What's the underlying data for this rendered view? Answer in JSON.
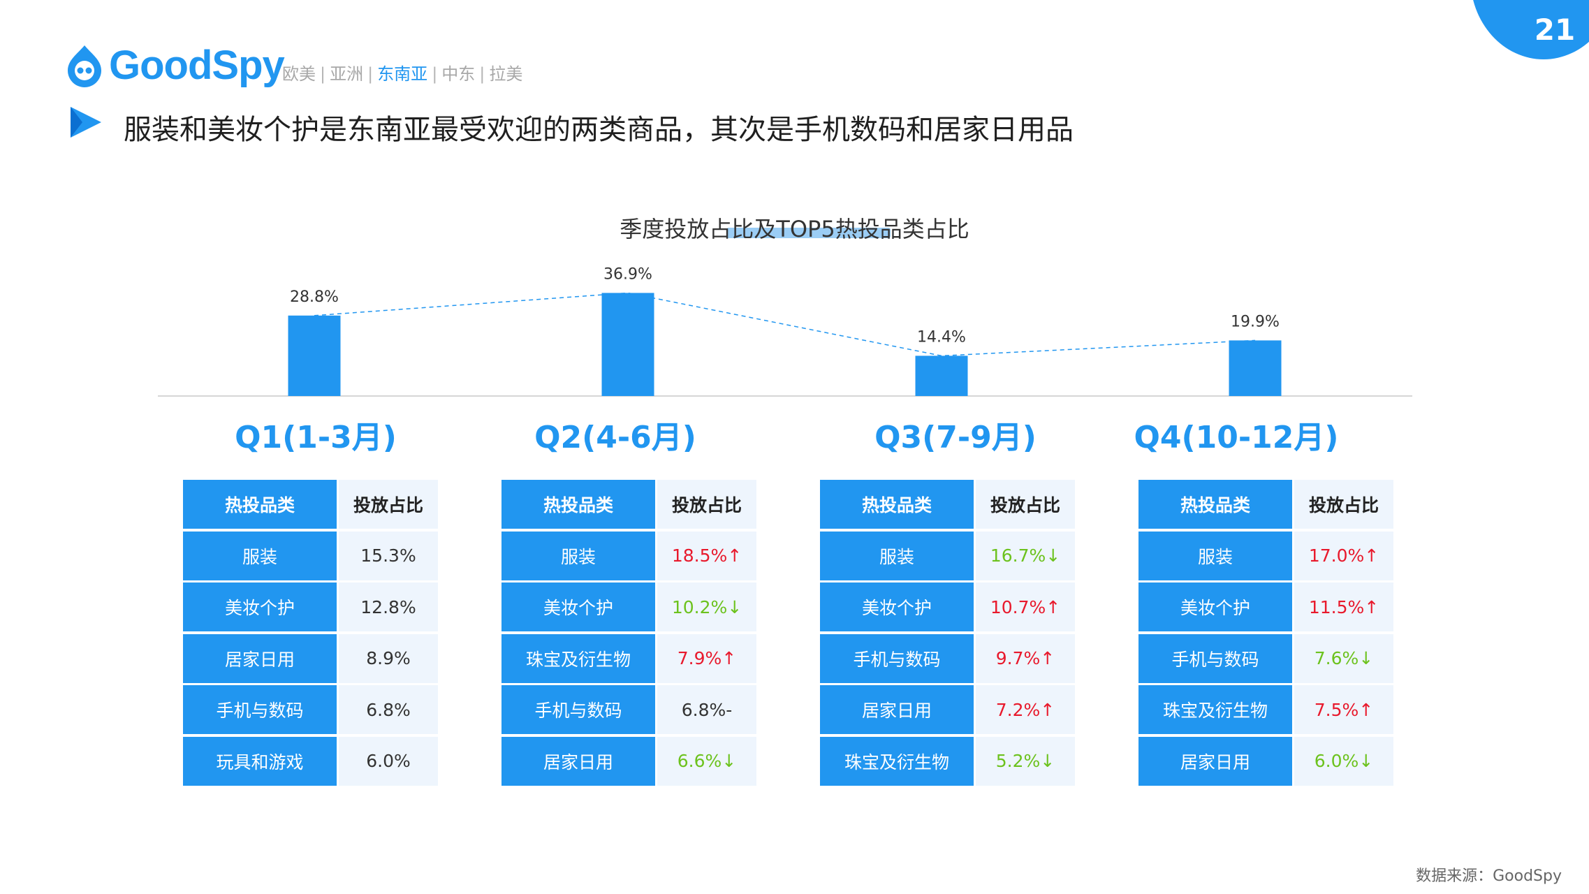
{
  "page_number": "21",
  "logo": {
    "text": "GoodSpy"
  },
  "regions": [
    {
      "label": "欧美",
      "active": false
    },
    {
      "label": "亚洲",
      "active": false
    },
    {
      "label": "东南亚",
      "active": true
    },
    {
      "label": "中东",
      "active": false
    },
    {
      "label": "拉美",
      "active": false
    }
  ],
  "headline": "服装和美妆个护是东南亚最受欢迎的两类商品，其次是手机数码和居家日用品",
  "chart_data": {
    "type": "bar",
    "title": "季度投放占比及TOP5热投品类占比",
    "categories": [
      "Q1(1-3月)",
      "Q2(4-6月)",
      "Q3(7-9月)",
      "Q4(10-12月)"
    ],
    "values": [
      28.8,
      36.9,
      14.4,
      19.9
    ],
    "value_labels": [
      "28.8%",
      "36.9%",
      "14.4%",
      "19.9%"
    ],
    "trend_line": "dashed",
    "grid": false,
    "legend": "none",
    "bar_color": "#2196f0"
  },
  "tables": [
    {
      "quarter": "Q1(1-3月)",
      "headers": [
        "热投品类",
        "投放占比"
      ],
      "rows": [
        {
          "category": "服装",
          "share": "15.3%",
          "trend": "flat"
        },
        {
          "category": "美妆个护",
          "share": "12.8%",
          "trend": "flat"
        },
        {
          "category": "居家日用",
          "share": "8.9%",
          "trend": "flat"
        },
        {
          "category": "手机与数码",
          "share": "6.8%",
          "trend": "flat"
        },
        {
          "category": "玩具和游戏",
          "share": "6.0%",
          "trend": "flat"
        }
      ]
    },
    {
      "quarter": "Q2(4-6月)",
      "headers": [
        "热投品类",
        "投放占比"
      ],
      "rows": [
        {
          "category": "服装",
          "share": "18.5%↑",
          "trend": "up"
        },
        {
          "category": "美妆个护",
          "share": "10.2%↓",
          "trend": "down"
        },
        {
          "category": "珠宝及衍生物",
          "share": "7.9%↑",
          "trend": "up"
        },
        {
          "category": "手机与数码",
          "share": "6.8%-",
          "trend": "flat"
        },
        {
          "category": "居家日用",
          "share": "6.6%↓",
          "trend": "down"
        }
      ]
    },
    {
      "quarter": "Q3(7-9月)",
      "headers": [
        "热投品类",
        "投放占比"
      ],
      "rows": [
        {
          "category": "服装",
          "share": "16.7%↓",
          "trend": "down"
        },
        {
          "category": "美妆个护",
          "share": "10.7%↑",
          "trend": "up"
        },
        {
          "category": "手机与数码",
          "share": "9.7%↑",
          "trend": "up"
        },
        {
          "category": "居家日用",
          "share": "7.2%↑",
          "trend": "up"
        },
        {
          "category": "珠宝及衍生物",
          "share": "5.2%↓",
          "trend": "down"
        }
      ]
    },
    {
      "quarter": "Q4(10-12月)",
      "headers": [
        "热投品类",
        "投放占比"
      ],
      "rows": [
        {
          "category": "服装",
          "share": "17.0%↑",
          "trend": "up"
        },
        {
          "category": "美妆个护",
          "share": "11.5%↑",
          "trend": "up"
        },
        {
          "category": "手机与数码",
          "share": "7.6%↓",
          "trend": "down"
        },
        {
          "category": "珠宝及衍生物",
          "share": "7.5%↑",
          "trend": "up"
        },
        {
          "category": "居家日用",
          "share": "6.0%↓",
          "trend": "down"
        }
      ]
    }
  ],
  "source": "数据来源：GoodSpy",
  "colors": {
    "accent": "#2196f0",
    "up": "#e8192c",
    "down": "#6cc21d"
  }
}
